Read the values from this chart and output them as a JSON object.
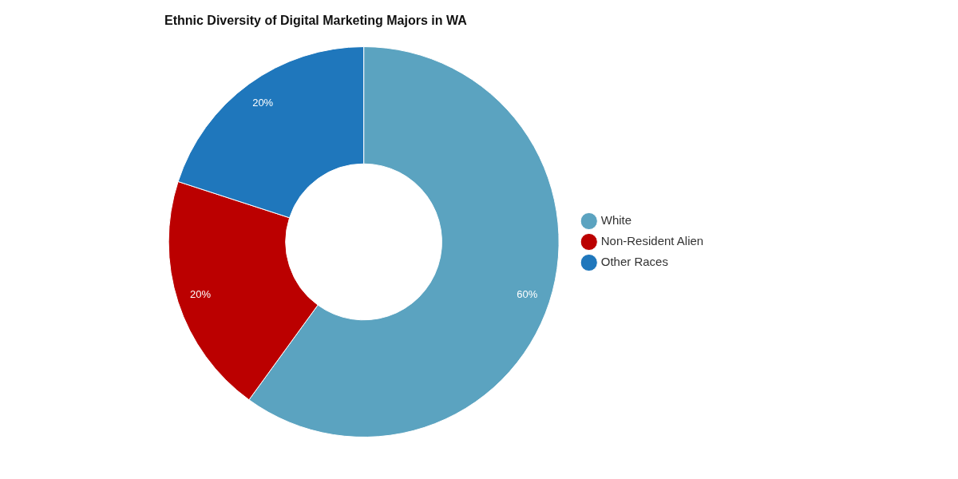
{
  "chart_data": {
    "type": "donut",
    "title": "Ethnic Diversity of Digital Marketing Majors in WA",
    "categories": [
      "White",
      "Non-Resident Alien",
      "Other Races"
    ],
    "values": [
      60,
      20,
      20
    ],
    "colors": [
      "#5ba3c0",
      "#bb0000",
      "#1f77bc"
    ],
    "value_labels": [
      "60%",
      "20%",
      "20%"
    ],
    "legend": "right"
  }
}
